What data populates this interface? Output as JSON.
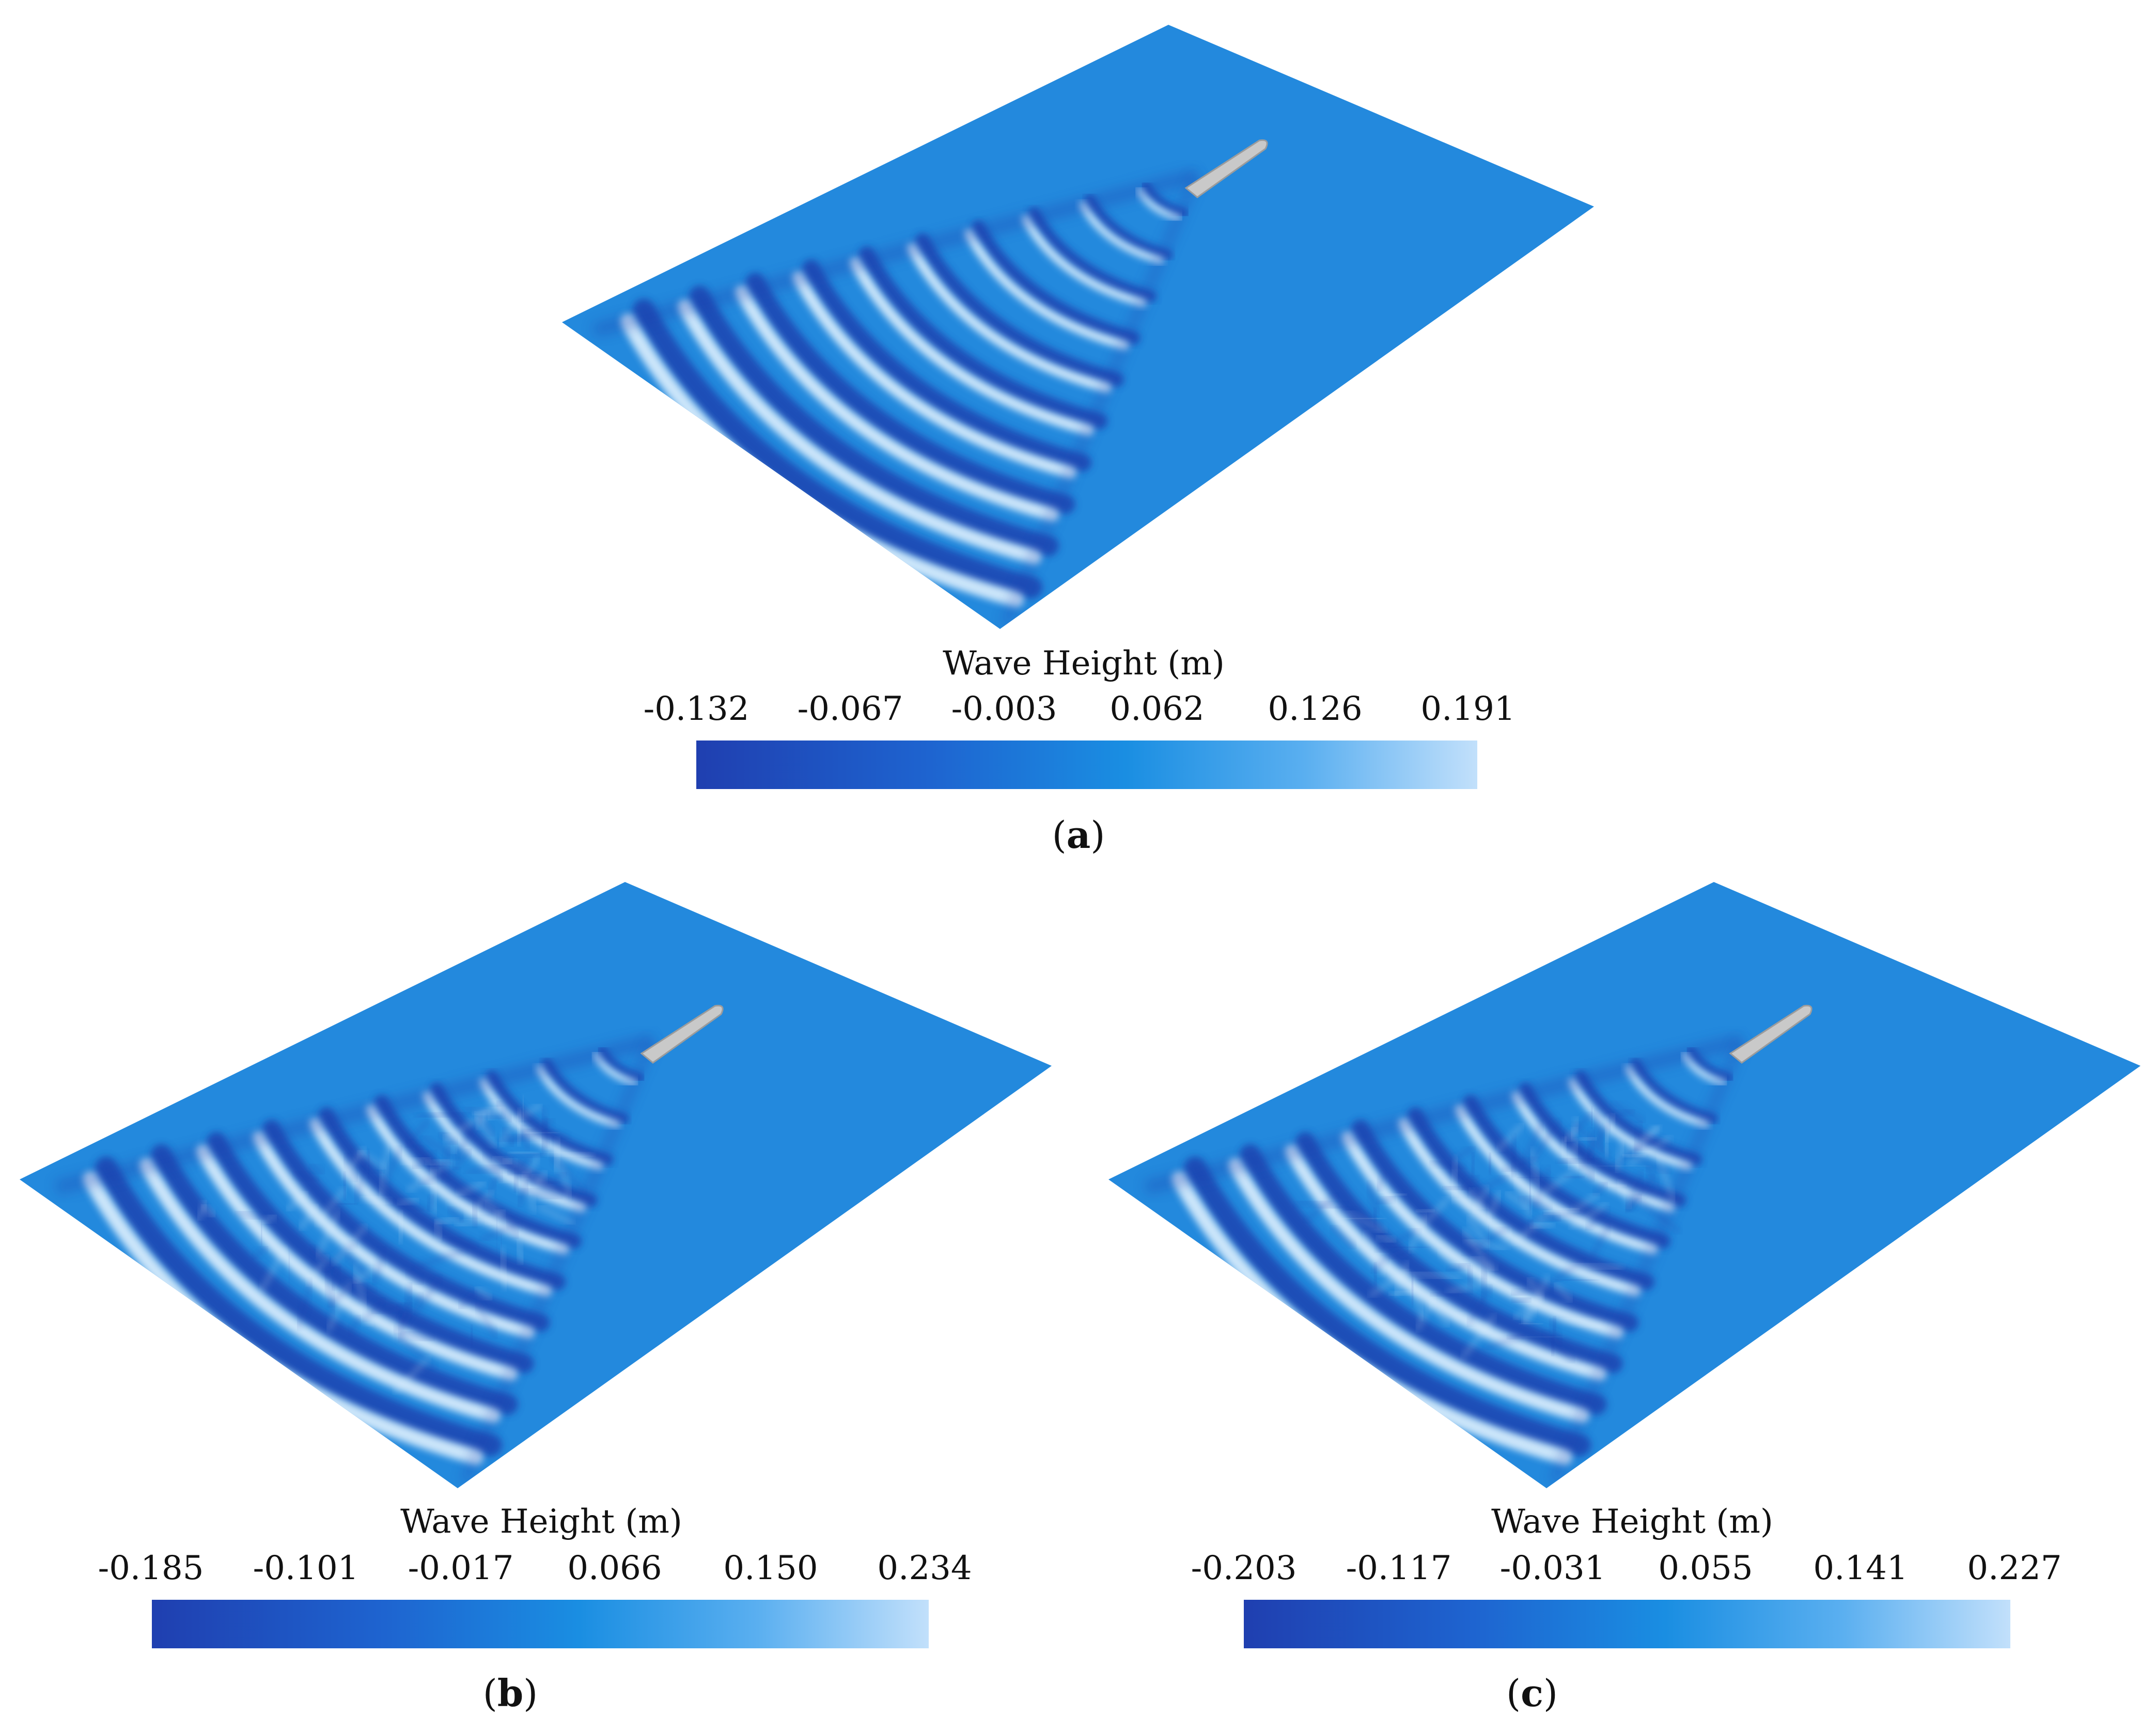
{
  "colors": {
    "sea": "#2389dd",
    "crest": "#dff0fd",
    "trough": "#1e3fae",
    "hull": "#c9c9c9"
  },
  "panels": [
    {
      "id": "a",
      "colorbar_title": "Wave Height (m)",
      "ticks": [
        "-0.132",
        "-0.067",
        "-0.003",
        "0.062",
        "0.126",
        "0.191"
      ],
      "caption_letter": "a"
    },
    {
      "id": "b",
      "colorbar_title": "Wave Height (m)",
      "ticks": [
        "-0.185",
        "-0.101",
        "-0.017",
        "0.066",
        "0.150",
        "0.234"
      ],
      "caption_letter": "b"
    },
    {
      "id": "c",
      "colorbar_title": "Wave Height (m)",
      "ticks": [
        "-0.203",
        "-0.117",
        "-0.031",
        "0.055",
        "0.141",
        "0.227"
      ],
      "caption_letter": "c"
    }
  ]
}
